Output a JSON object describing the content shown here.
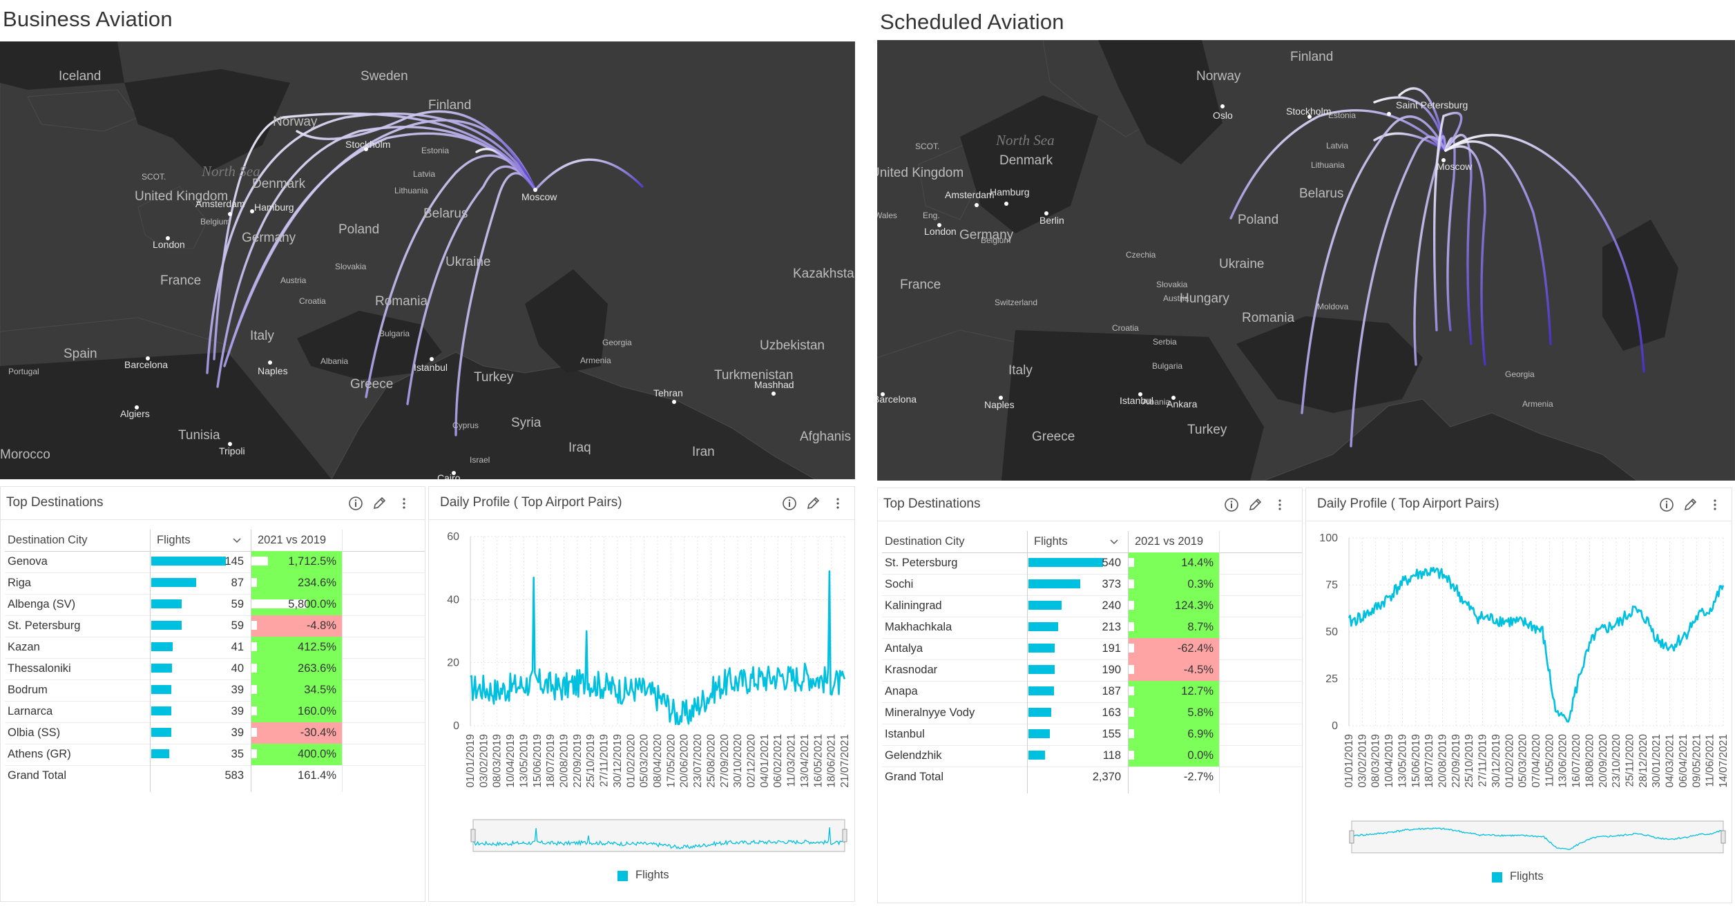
{
  "left": {
    "title": "Business Aviation",
    "top_destinations": {
      "title": "Top Destinations",
      "headers": {
        "city": "Destination City",
        "flights": "Flights",
        "compare": "2021 vs 2019"
      },
      "rows": [
        {
          "city": "Genova",
          "flights": "145",
          "compare": "1,712.5%",
          "status": "up"
        },
        {
          "city": "Riga",
          "flights": "87",
          "compare": "234.6%",
          "status": "up"
        },
        {
          "city": "Albenga (SV)",
          "flights": "59",
          "compare": "5,800.0%",
          "status": "up"
        },
        {
          "city": "St. Petersburg",
          "flights": "59",
          "compare": "-4.8%",
          "status": "down"
        },
        {
          "city": "Kazan",
          "flights": "41",
          "compare": "412.5%",
          "status": "up"
        },
        {
          "city": "Thessaloniki",
          "flights": "40",
          "compare": "263.6%",
          "status": "up"
        },
        {
          "city": "Bodrum",
          "flights": "39",
          "compare": "34.5%",
          "status": "up"
        },
        {
          "city": "Larnarca",
          "flights": "39",
          "compare": "160.0%",
          "status": "up"
        },
        {
          "city": "Olbia (SS)",
          "flights": "39",
          "compare": "-30.4%",
          "status": "down"
        },
        {
          "city": "Athens (GR)",
          "flights": "35",
          "compare": "400.0%",
          "status": "up"
        }
      ],
      "total": {
        "label": "Grand Total",
        "flights": "583",
        "compare": "161.4%"
      }
    },
    "daily_profile": {
      "title": "Daily Profile ( Top Airport Pairs)",
      "legend": "Flights"
    }
  },
  "right": {
    "title": "Scheduled Aviation",
    "top_destinations": {
      "title": "Top Destinations",
      "headers": {
        "city": "Destination City",
        "flights": "Flights",
        "compare": "2021 vs 2019"
      },
      "rows": [
        {
          "city": "St. Petersburg",
          "flights": "540",
          "compare": "14.4%",
          "status": "up"
        },
        {
          "city": "Sochi",
          "flights": "373",
          "compare": "0.3%",
          "status": "up"
        },
        {
          "city": "Kaliningrad",
          "flights": "240",
          "compare": "124.3%",
          "status": "up"
        },
        {
          "city": "Makhachkala",
          "flights": "213",
          "compare": "8.7%",
          "status": "up"
        },
        {
          "city": "Antalya",
          "flights": "191",
          "compare": "-62.4%",
          "status": "down"
        },
        {
          "city": "Krasnodar",
          "flights": "190",
          "compare": "-4.5%",
          "status": "down"
        },
        {
          "city": "Anapa",
          "flights": "187",
          "compare": "12.7%",
          "status": "up"
        },
        {
          "city": "Mineralnyye Vody",
          "flights": "163",
          "compare": "5.8%",
          "status": "up"
        },
        {
          "city": "Istanbul",
          "flights": "155",
          "compare": "6.9%",
          "status": "up"
        },
        {
          "city": "Gelendzhik",
          "flights": "118",
          "compare": "0.0%",
          "status": "up"
        }
      ],
      "total": {
        "label": "Grand Total",
        "flights": "2,370",
        "compare": "-2.7%"
      }
    },
    "daily_profile": {
      "title": "Daily Profile ( Top Airport Pairs)",
      "legend": "Flights"
    }
  },
  "colors": {
    "accent": "#00c0e0",
    "up": "#7dff5a",
    "down": "#ffa4a4",
    "map_bg": "#262626",
    "land": "#3a3a3a",
    "arc_start": "#ffffff",
    "arc_end": "#4a2fc4"
  },
  "maps": {
    "left": {
      "countries": [
        "Iceland",
        "Sweden",
        "Finland",
        "Norway",
        "United Kingdom",
        "Denmark",
        "Belarus",
        "Poland",
        "Ukraine",
        "Germany",
        "France",
        "Romania",
        "Italy",
        "Spain",
        "Greece",
        "Turkey",
        "Syria",
        "Iraq",
        "Iran",
        "Tunisia",
        "Turkmenistan",
        "Uzbekistan",
        "Kazakhsta",
        "Afghanis",
        "Morocco"
      ],
      "cities": [
        "Moscow",
        "Stockholm",
        "Amsterdam",
        "London",
        "Hamburg",
        "Barcelona",
        "Naples",
        "Istanbul",
        "Algiers",
        "Tripoli",
        "Tehran",
        "Mashhad",
        "Cairo"
      ],
      "small": [
        "Estonia",
        "Latvia",
        "Lithuania",
        "Slovakia",
        "Austria",
        "Croatia",
        "Bulgaria",
        "Albania",
        "Portugal",
        "Georgia",
        "Armenia",
        "Cyprus",
        "Israel",
        "Belgium"
      ],
      "water": [
        "North Sea"
      ],
      "scot": "SCOT."
    },
    "right": {
      "countries": [
        "Finland",
        "Norway",
        "United Kingdom",
        "Denmark",
        "Poland",
        "Belarus",
        "Germany",
        "Ukraine",
        "France",
        "Hungary",
        "Romania",
        "Italy",
        "Greece",
        "Turkey"
      ],
      "cities": [
        "Oslo",
        "Stockholm",
        "Saint Petersburg",
        "Moscow",
        "Amsterdam",
        "Hamburg",
        "Berlin",
        "London",
        "Naples",
        "Istanbul",
        "Ankara",
        "Barcelona"
      ],
      "small": [
        "Estonia",
        "Latvia",
        "Lithuania",
        "Czechia",
        "Slovakia",
        "Austria",
        "Moldova",
        "Croatia",
        "Serbia",
        "Switzerland",
        "Bulgaria",
        "Georgia",
        "Armenia",
        "Albania",
        "Belgium",
        "Wales",
        "Eng."
      ],
      "water": [
        "North Sea"
      ],
      "scot": "SCOT."
    }
  },
  "chart_data": [
    {
      "type": "line",
      "title": "Daily Profile ( Top Airport Pairs)",
      "series": [
        {
          "name": "Flights"
        }
      ],
      "ylim": [
        0,
        60
      ],
      "yticks": [
        "0",
        "20",
        "40",
        "60"
      ],
      "xticks": [
        "01/01/2019",
        "03/02/2019",
        "08/03/2019",
        "10/04/2019",
        "13/05/2019",
        "15/06/2019",
        "18/07/2019",
        "20/08/2019",
        "22/09/2019",
        "25/10/2019",
        "27/11/2019",
        "30/12/2019",
        "01/02/2020",
        "05/03/2020",
        "08/04/2020",
        "17/05/2020",
        "20/06/2020",
        "23/07/2020",
        "25/08/2020",
        "27/09/2020",
        "30/10/2020",
        "02/12/2020",
        "04/01/2021",
        "06/02/2021",
        "11/03/2021",
        "13/04/2021",
        "16/05/2021",
        "18/06/2021",
        "21/07/2021"
      ],
      "profile": [
        12,
        12,
        11,
        12,
        13,
        14,
        13,
        12,
        13,
        14,
        13,
        12,
        11,
        12,
        10,
        8,
        3,
        4,
        8,
        12,
        14,
        14,
        15,
        15,
        16,
        15,
        16,
        15,
        14,
        13
      ],
      "spikes": [
        {
          "t": 0.17,
          "v": 47
        },
        {
          "t": 0.96,
          "v": 49
        },
        {
          "t": 0.31,
          "v": 30
        }
      ]
    },
    {
      "type": "line",
      "title": "Daily Profile ( Top Airport Pairs)",
      "series": [
        {
          "name": "Flights"
        }
      ],
      "ylim": [
        0,
        100
      ],
      "yticks": [
        "0",
        "25",
        "50",
        "75",
        "100"
      ],
      "xticks": [
        "01/01/2019",
        "03/02/2019",
        "08/03/2019",
        "10/04/2019",
        "13/05/2019",
        "15/06/2019",
        "18/07/2019",
        "20/08/2019",
        "22/09/2019",
        "25/10/2019",
        "27/11/2019",
        "30/12/2019",
        "01/02/2020",
        "05/03/2020",
        "07/04/2020",
        "11/05/2020",
        "13/06/2020",
        "16/07/2020",
        "18/08/2020",
        "20/09/2020",
        "23/10/2020",
        "25/11/2020",
        "28/12/2020",
        "30/01/2021",
        "04/03/2021",
        "06/04/2021",
        "09/05/2021",
        "11/06/2021",
        "14/07/2021"
      ],
      "profile": [
        55,
        58,
        62,
        68,
        75,
        80,
        82,
        81,
        76,
        65,
        58,
        57,
        56,
        55,
        54,
        50,
        8,
        3,
        30,
        48,
        52,
        55,
        62,
        57,
        45,
        42,
        48,
        58,
        62,
        75
      ]
    }
  ]
}
